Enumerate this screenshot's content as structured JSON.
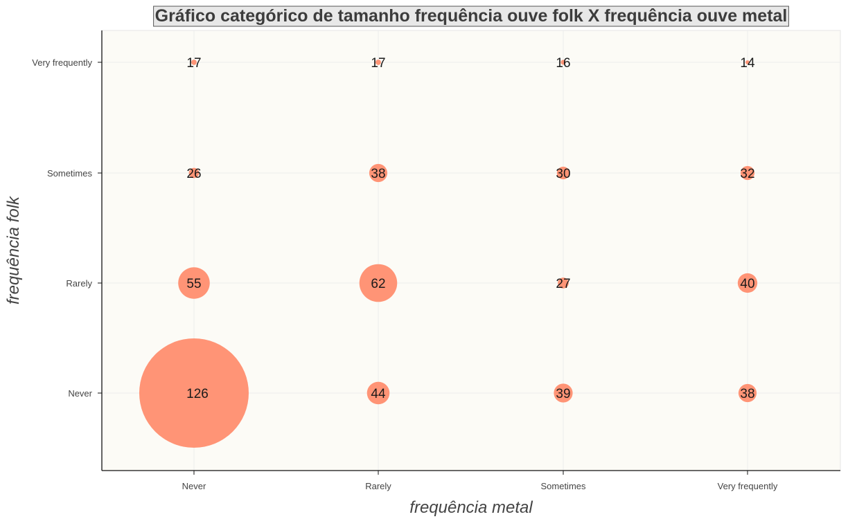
{
  "chart_data": {
    "type": "scatter",
    "title": "Gráfico categórico de tamanho frequência ouve folk X frequência ouve metal",
    "xlabel": "frequência metal",
    "ylabel": "frequência folk",
    "x_categories": [
      "Never",
      "Rarely",
      "Sometimes",
      "Very frequently"
    ],
    "y_categories": [
      "Never",
      "Rarely",
      "Sometimes",
      "Very frequently"
    ],
    "points": [
      {
        "x": "Never",
        "y": "Never",
        "value": 126
      },
      {
        "x": "Rarely",
        "y": "Never",
        "value": 44
      },
      {
        "x": "Sometimes",
        "y": "Never",
        "value": 39
      },
      {
        "x": "Very frequently",
        "y": "Never",
        "value": 38
      },
      {
        "x": "Never",
        "y": "Rarely",
        "value": 55
      },
      {
        "x": "Rarely",
        "y": "Rarely",
        "value": 62
      },
      {
        "x": "Sometimes",
        "y": "Rarely",
        "value": 27
      },
      {
        "x": "Very frequently",
        "y": "Rarely",
        "value": 40
      },
      {
        "x": "Never",
        "y": "Sometimes",
        "value": 26
      },
      {
        "x": "Rarely",
        "y": "Sometimes",
        "value": 38
      },
      {
        "x": "Sometimes",
        "y": "Sometimes",
        "value": 30
      },
      {
        "x": "Very frequently",
        "y": "Sometimes",
        "value": 32
      },
      {
        "x": "Never",
        "y": "Very frequently",
        "value": 17
      },
      {
        "x": "Rarely",
        "y": "Very frequently",
        "value": 17
      },
      {
        "x": "Sometimes",
        "y": "Very frequently",
        "value": 16
      },
      {
        "x": "Very frequently",
        "y": "Very frequently",
        "value": 14
      }
    ],
    "grid": true,
    "colors": {
      "bubble": "#ff9476",
      "plot_background": "#fcfbf6",
      "title_box": "#e8e8e8"
    }
  }
}
